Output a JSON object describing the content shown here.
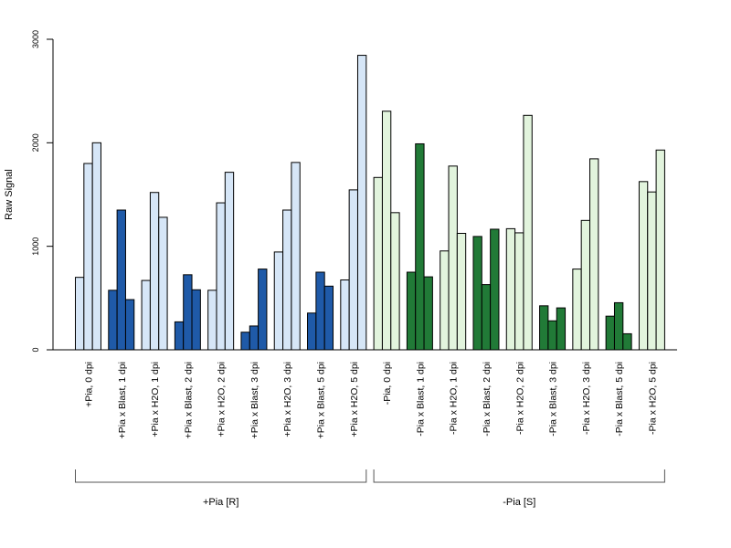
{
  "chart_data": {
    "type": "bar",
    "ylabel": "Raw Signal",
    "xlabel": "",
    "ylim": [
      0,
      3000
    ],
    "yticks": [
      0,
      1000,
      2000,
      3000
    ],
    "grid": false,
    "bars_per_category": 3,
    "colors": {
      "R_light": "#d6e6f7",
      "R_dark": "#1f5aa8",
      "S_light": "#e2f4dd",
      "S_dark": "#217a37",
      "edge": "#000000"
    },
    "categories": [
      {
        "label": "+Pia, 0 dpi",
        "values": [
          700,
          1800,
          2000
        ],
        "color": "R_light"
      },
      {
        "label": "+Pia x Blast, 1 dpi",
        "values": [
          575,
          1350,
          485
        ],
        "color": "R_dark"
      },
      {
        "label": "+Pia x H2O, 1 dpi",
        "values": [
          670,
          1520,
          1280
        ],
        "color": "R_light"
      },
      {
        "label": "+Pia x Blast, 2 dpi",
        "values": [
          270,
          725,
          580
        ],
        "color": "R_dark"
      },
      {
        "label": "+Pia x H2O, 2 dpi",
        "values": [
          575,
          1420,
          1715
        ],
        "color": "R_light"
      },
      {
        "label": "+Pia x Blast, 3 dpi",
        "values": [
          170,
          230,
          780
        ],
        "color": "R_dark"
      },
      {
        "label": "+Pia x H2O, 3 dpi",
        "values": [
          945,
          1350,
          1810
        ],
        "color": "R_light"
      },
      {
        "label": "+Pia x Blast, 5 dpi",
        "values": [
          355,
          750,
          615
        ],
        "color": "R_dark"
      },
      {
        "label": "+Pia x H2O, 5 dpi",
        "values": [
          675,
          1545,
          2845
        ],
        "color": "R_light"
      },
      {
        "label": "-Pia, 0 dpi",
        "values": [
          1665,
          2305,
          1325
        ],
        "color": "S_light"
      },
      {
        "label": "-Pia x Blast, 1 dpi",
        "values": [
          750,
          1990,
          705
        ],
        "color": "S_dark"
      },
      {
        "label": "-Pia x H2O, 1 dpi",
        "values": [
          955,
          1775,
          1125
        ],
        "color": "S_light"
      },
      {
        "label": "-Pia x Blast, 2 dpi",
        "values": [
          1095,
          630,
          1165
        ],
        "color": "S_dark"
      },
      {
        "label": "-Pia x H2O, 2 dpi",
        "values": [
          1170,
          1130,
          2265
        ],
        "color": "S_light"
      },
      {
        "label": "-Pia x Blast, 3 dpi",
        "values": [
          425,
          280,
          405
        ],
        "color": "S_dark"
      },
      {
        "label": "-Pia x H2O, 3 dpi",
        "values": [
          780,
          1250,
          1845
        ],
        "color": "S_light"
      },
      {
        "label": "-Pia x Blast, 5 dpi",
        "values": [
          325,
          455,
          155
        ],
        "color": "S_dark"
      },
      {
        "label": "-Pia x H2O, 5 dpi",
        "values": [
          1625,
          1525,
          1930
        ],
        "color": "S_light"
      }
    ],
    "groups": [
      {
        "label": "+Pia [R]",
        "first": 0,
        "last": 8
      },
      {
        "label": "-Pia [S]",
        "first": 9,
        "last": 17
      }
    ]
  }
}
